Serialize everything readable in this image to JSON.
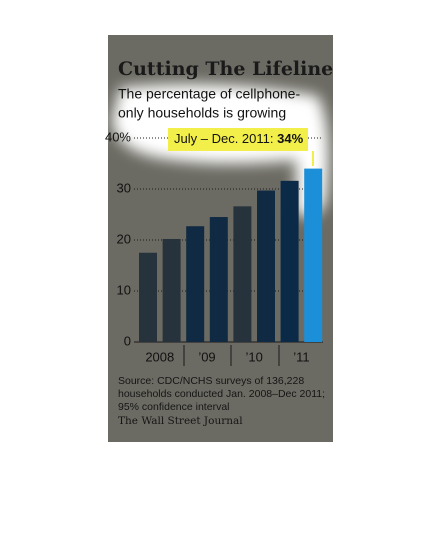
{
  "chart_data": {
    "type": "bar",
    "title": "Cutting The Lifeline",
    "subtitle": [
      "The percentage of cellphone-",
      "only households is growing"
    ],
    "categories": [
      "2008",
      null,
      "’09",
      null,
      "’10",
      null,
      "’11",
      null
    ],
    "values": [
      17.5,
      20.2,
      22.7,
      24.5,
      26.6,
      29.7,
      31.6,
      34
    ],
    "colors": [
      "#26323c",
      "#26323c",
      "#0f2a42",
      "#0f2a42",
      "#26323c",
      "#0f2a42",
      "#0a2a48",
      "#1b8fd8"
    ],
    "ylim": [
      0,
      40
    ],
    "yticks": [
      0,
      10,
      20,
      30,
      {
        "value": 40,
        "label": "40%"
      }
    ],
    "grid": true,
    "annotation": {
      "label": "July – Dec. 2011:",
      "value_label": "34%"
    },
    "source": [
      "Source: CDC/NCHS surveys of 136,228",
      "households conducted Jan. 2008–Dec 2011;",
      "95% confidence interval"
    ],
    "credit": "The Wall Street Journal"
  }
}
